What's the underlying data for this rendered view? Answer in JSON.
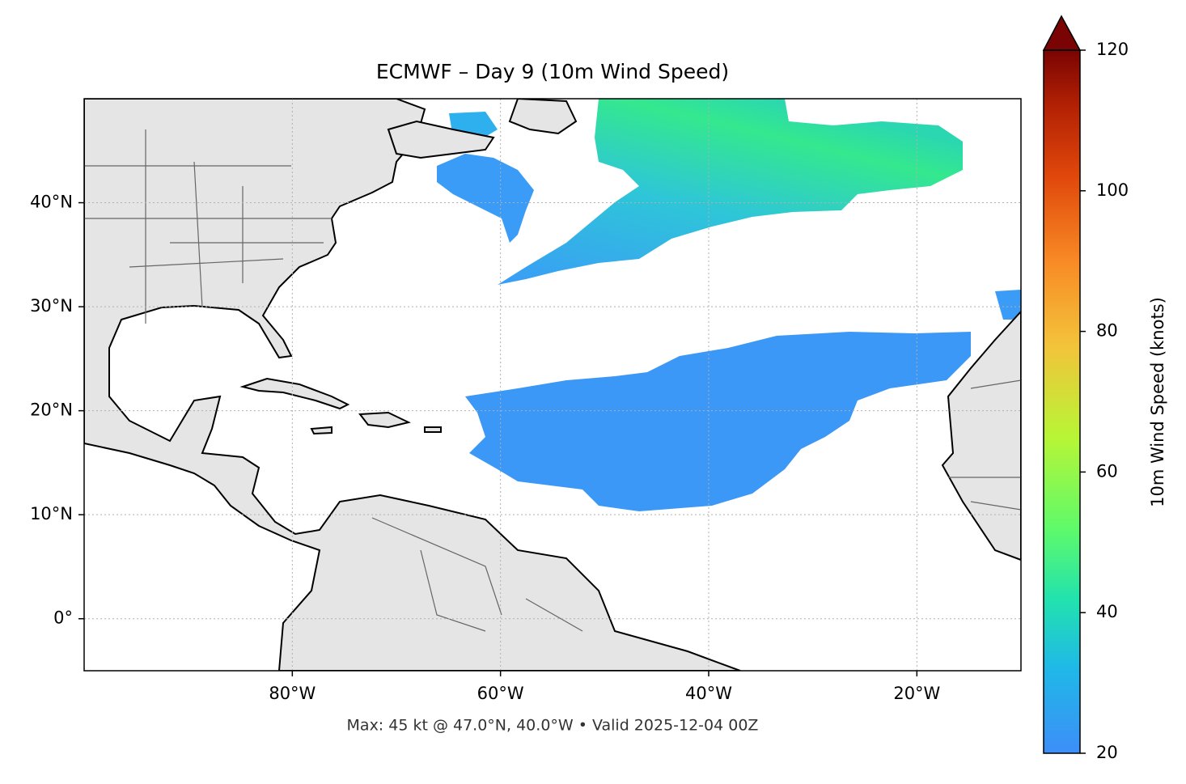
{
  "map": {
    "title": "ECMWF – Day 9 (10m Wind Speed)",
    "lon_range": [
      -100,
      -10
    ],
    "lat_range": [
      -5,
      50
    ],
    "lon_ticks": [
      {
        "value": -80,
        "label": "80°W"
      },
      {
        "value": -60,
        "label": "60°W"
      },
      {
        "value": -40,
        "label": "40°W"
      },
      {
        "value": -20,
        "label": "20°W"
      }
    ],
    "lat_ticks": [
      {
        "value": 0,
        "label": "0°"
      },
      {
        "value": 10,
        "label": "10°N"
      },
      {
        "value": 20,
        "label": "20°N"
      },
      {
        "value": 30,
        "label": "30°N"
      },
      {
        "value": 40,
        "label": "40°N"
      }
    ],
    "colorbar": {
      "label": "10m Wind Speed (knots)",
      "range": [
        20,
        120
      ],
      "ticks": [
        20,
        40,
        60,
        80,
        100,
        120
      ]
    },
    "footer": "Max: 45 kt @ 47.0°N, 40.0°W • Valid 2025-12-04 00Z"
  }
}
